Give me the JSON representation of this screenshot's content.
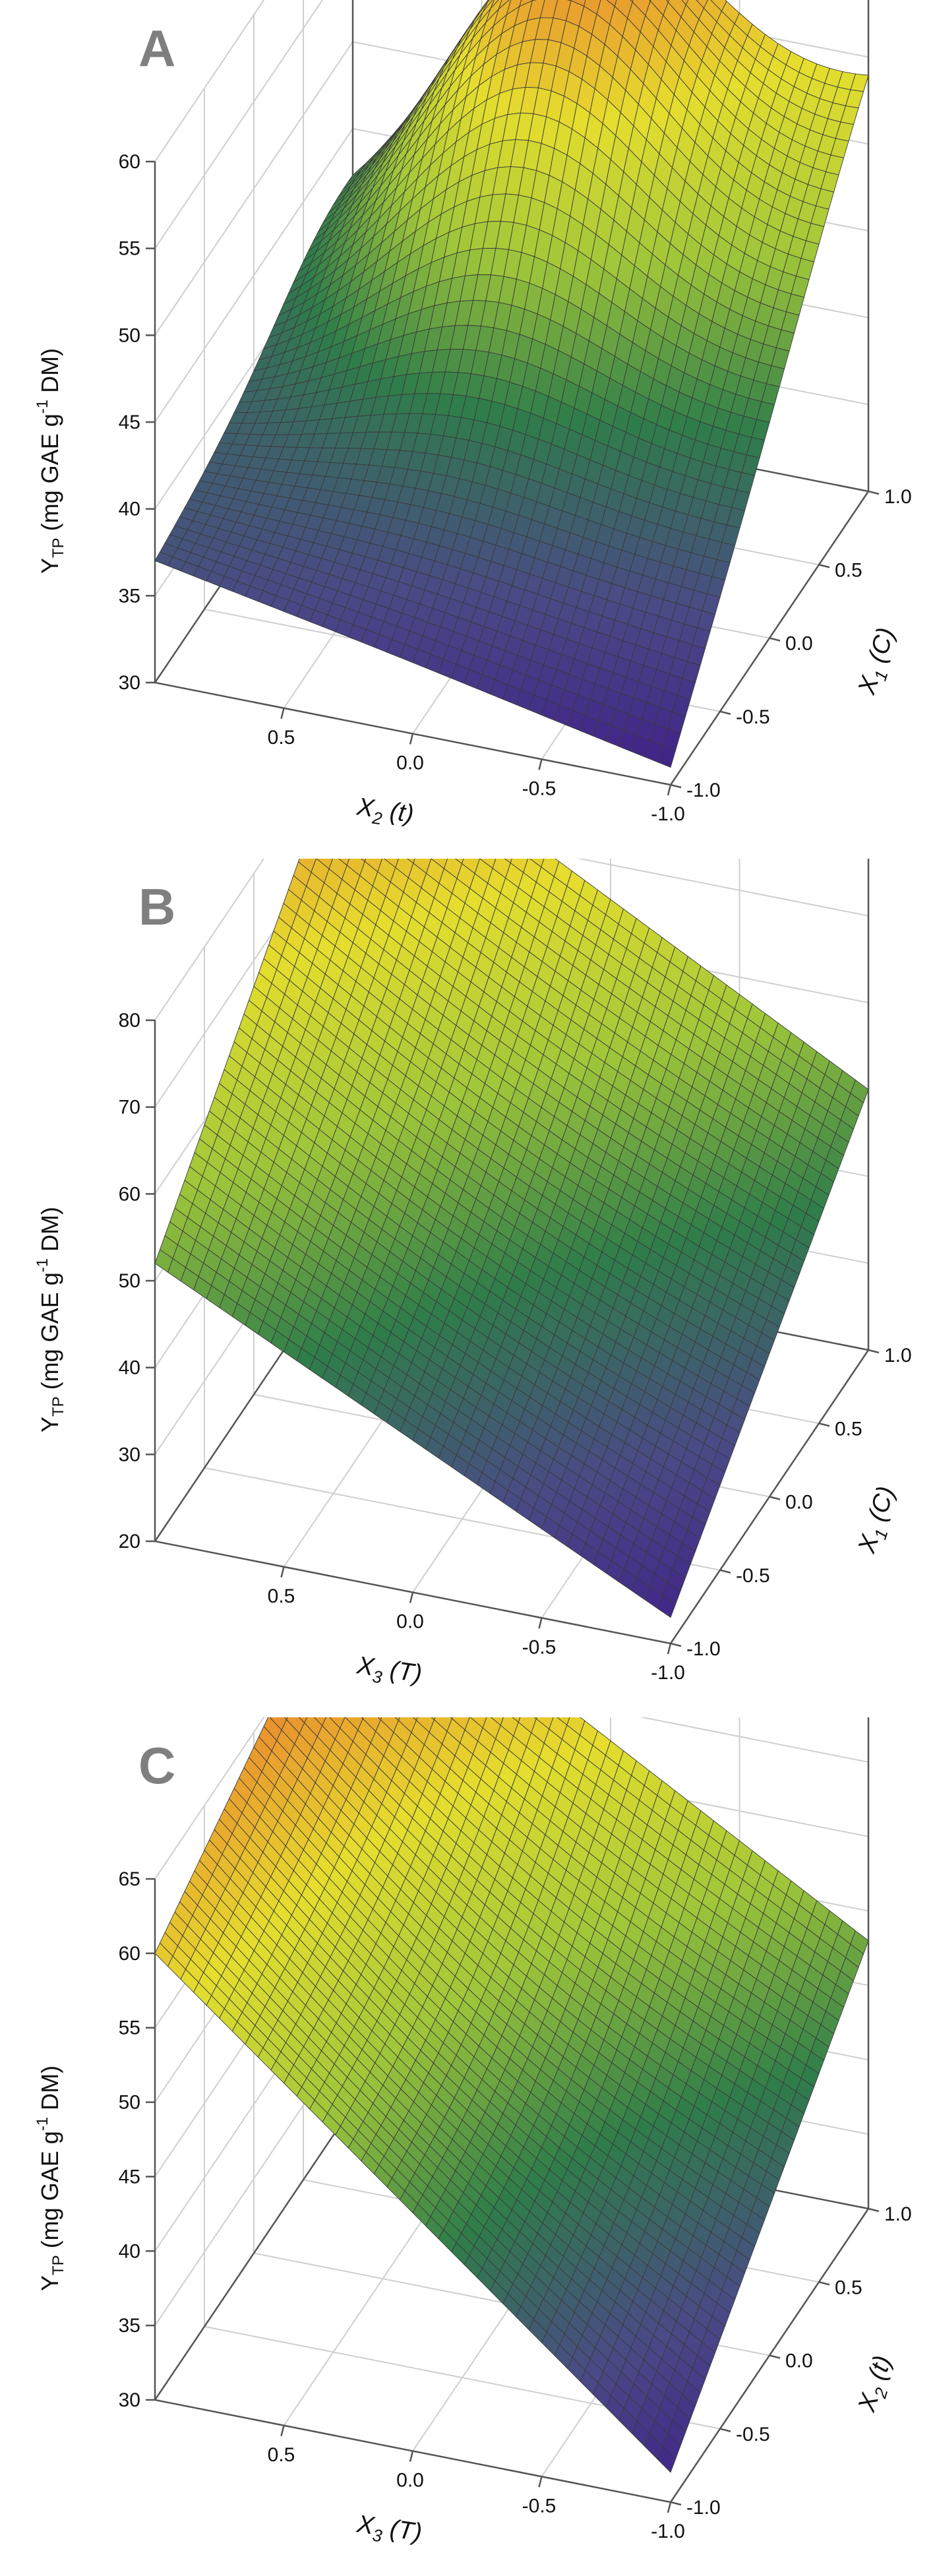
{
  "chart_data": [
    {
      "type": "surface",
      "panel_label": "A",
      "zlabel_main": "Y",
      "zlabel_sub": "TP",
      "zlabel_rest_pre": " (mg GAE g",
      "zlabel_sup": "-1",
      "zlabel_rest_post": " DM)",
      "zlim": [
        30,
        60
      ],
      "zticks": [
        "30",
        "35",
        "40",
        "45",
        "50",
        "55",
        "60"
      ],
      "x_label_main": "X",
      "x_label_sub": "2",
      "x_label_rest": " (t)",
      "x_ticks": [
        "0.5",
        "0.0",
        "-0.5",
        "-1.0"
      ],
      "x_range": [
        -1.0,
        1.0
      ],
      "y_label_main": "X",
      "y_label_sub": "1",
      "y_label_rest": " (C)",
      "y_ticks": [
        "-1.0",
        "-0.5",
        "0.0",
        "0.5",
        "1.0"
      ],
      "y_range": [
        -1.0,
        1.0
      ],
      "corners": {
        "x_pos_y_neg": 37,
        "x_neg_y_neg": 31,
        "x_pos_y_pos": 40,
        "x_neg_y_pos": 53
      },
      "peak": {
        "x": 0.1,
        "y": 0.75,
        "z": 60
      }
    },
    {
      "type": "surface",
      "panel_label": "B",
      "zlabel_main": "Y",
      "zlabel_sub": "TP",
      "zlabel_rest_pre": " (mg GAE g",
      "zlabel_sup": "-1",
      "zlabel_rest_post": " DM)",
      "zlim": [
        20,
        80
      ],
      "zticks": [
        "20",
        "30",
        "40",
        "50",
        "60",
        "70",
        "80"
      ],
      "x_label_main": "X",
      "x_label_sub": "3",
      "x_label_rest": " (T)",
      "x_ticks": [
        "0.5",
        "0.0",
        "-0.5",
        "-1.0"
      ],
      "x_range": [
        -1.0,
        1.0
      ],
      "y_label_main": "X",
      "y_label_sub": "1",
      "y_label_rest": " (C)",
      "y_ticks": [
        "-1.0",
        "-0.5",
        "0.0",
        "0.5",
        "1.0"
      ],
      "y_range": [
        -1.0,
        1.0
      ],
      "corners": {
        "x_pos_y_neg": 52,
        "x_neg_y_neg": 23,
        "x_pos_y_pos": 82,
        "x_neg_y_pos": 50
      }
    },
    {
      "type": "surface",
      "panel_label": "C",
      "zlabel_main": "Y",
      "zlabel_sub": "TP",
      "zlabel_rest_pre": " (mg GAE g",
      "zlabel_sup": "-1",
      "zlabel_rest_post": " DM)",
      "zlim": [
        30,
        65
      ],
      "zticks": [
        "30",
        "35",
        "40",
        "45",
        "50",
        "55",
        "60",
        "65"
      ],
      "x_label_main": "X",
      "x_label_sub": "3",
      "x_label_rest": " (T)",
      "x_ticks": [
        "0.5",
        "0.0",
        "-0.5",
        "-1.0"
      ],
      "x_range": [
        -1.0,
        1.0
      ],
      "y_label_main": "X",
      "y_label_sub": "2",
      "y_label_rest": " (t)",
      "y_ticks": [
        "-1.0",
        "-0.5",
        "0.0",
        "0.5",
        "1.0"
      ],
      "y_range": [
        -1.0,
        1.0
      ],
      "corners": {
        "x_pos_y_neg": 60,
        "x_neg_y_neg": 32,
        "x_pos_y_pos": 68,
        "x_neg_y_pos": 48
      }
    }
  ],
  "colormap": [
    "#3f1a8a",
    "#4a4a86",
    "#2f7d4a",
    "#9fc63a",
    "#e5de2e",
    "#ea8a2e"
  ],
  "grid": true,
  "mesh_color": "#3a3a3a"
}
